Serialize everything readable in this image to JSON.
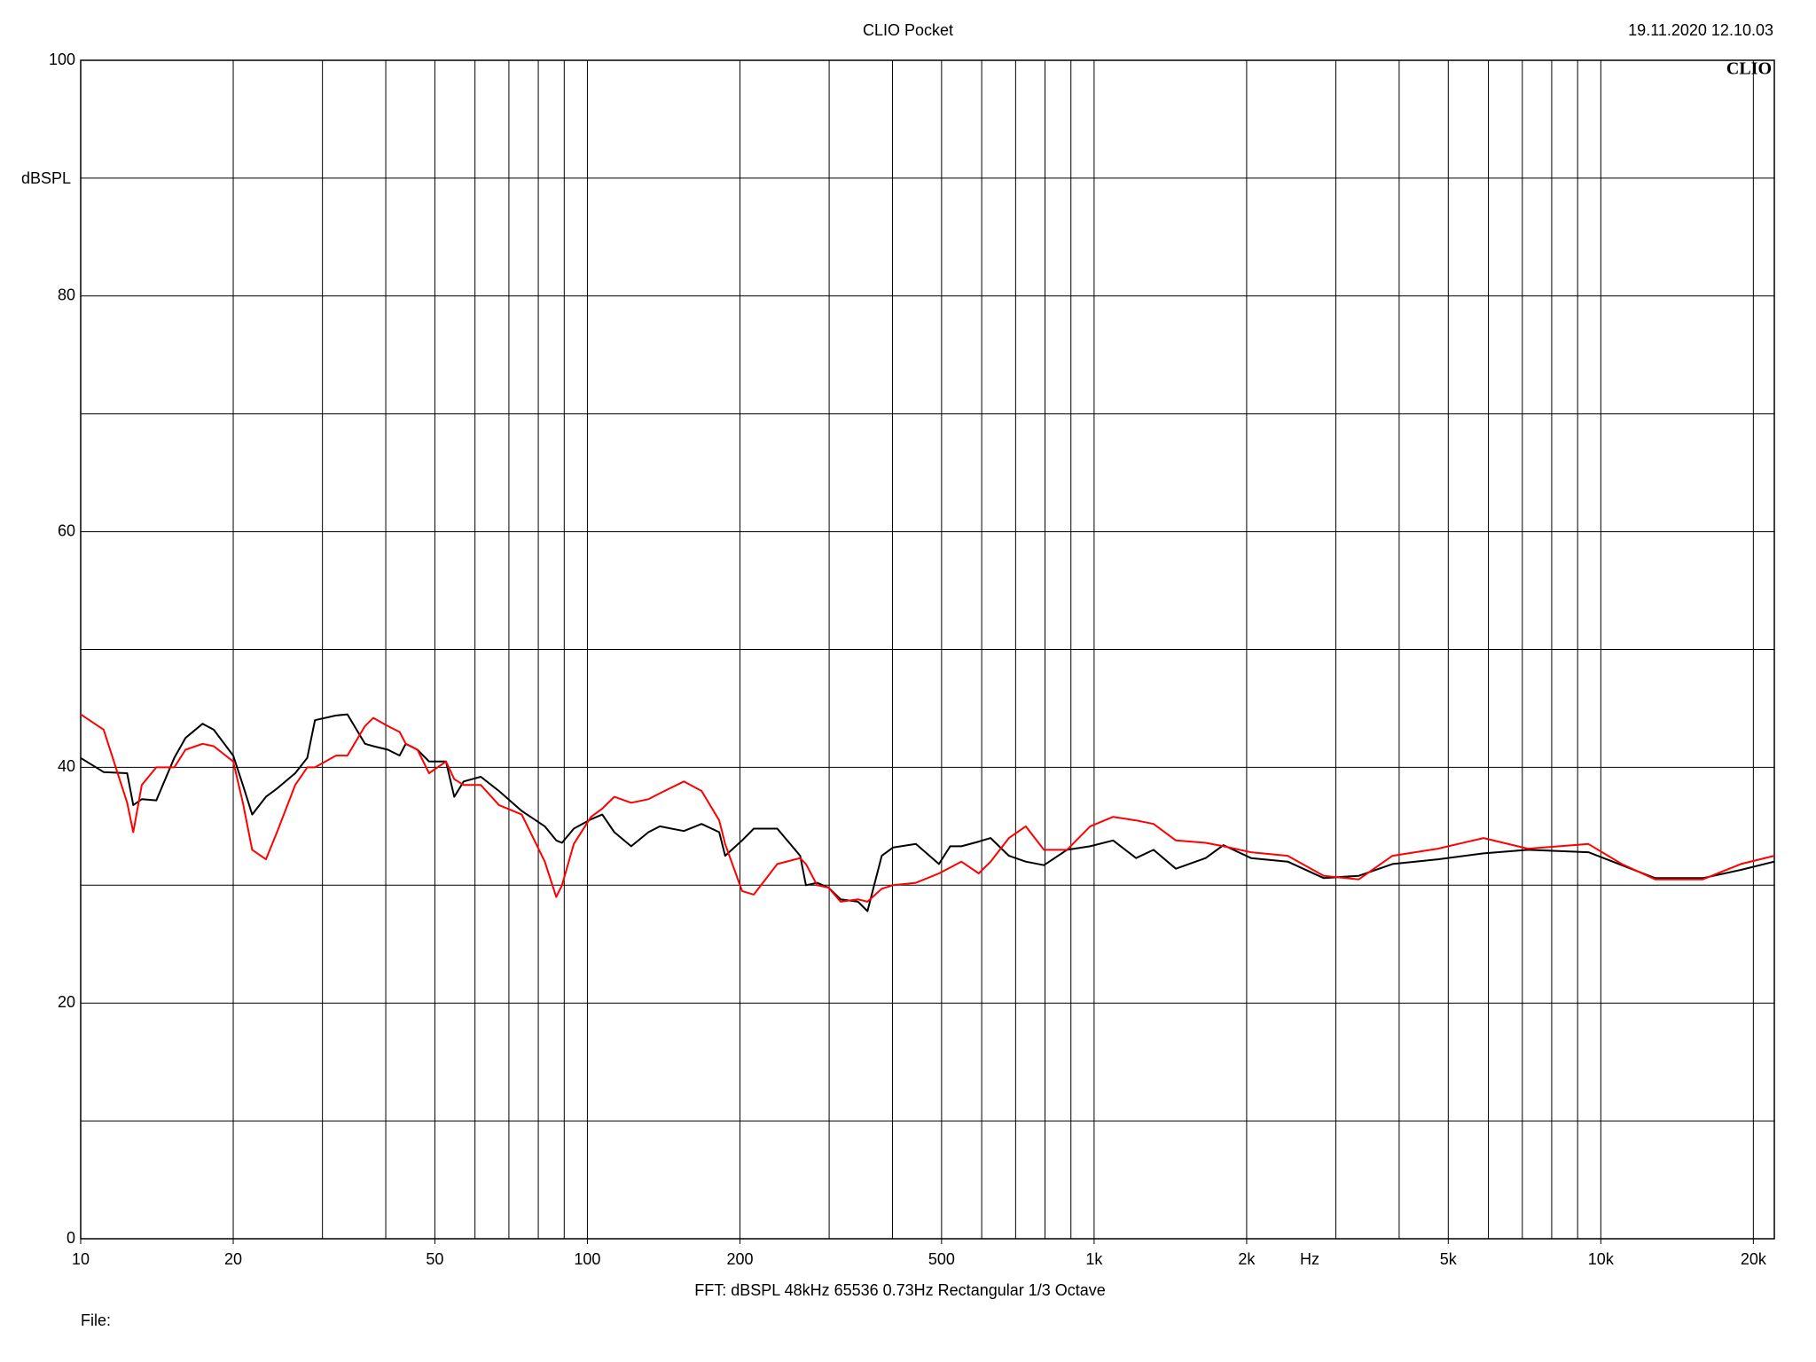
{
  "chart_data": {
    "type": "line",
    "title": "CLIO Pocket",
    "timestamp": "19.11.2020 12.10.03",
    "logo": "CLIO",
    "y_label": "dBSPL",
    "x_label": "Hz",
    "footer": "FFT:  dBSPL  48kHz  65536  0.73Hz  Rectangular  1/3 Octave",
    "file_label": "File:",
    "log_x": true,
    "grid": true,
    "xlim": [
      10,
      22000
    ],
    "ylim": [
      0,
      100
    ],
    "yticks": [
      0,
      20,
      40,
      60,
      80,
      100
    ],
    "ygrid_minor": [
      10,
      30,
      50,
      70,
      90
    ],
    "xticks": [
      10,
      20,
      50,
      100,
      200,
      500,
      {
        "value": 1000,
        "label": "1k"
      },
      {
        "value": 2000,
        "label": "2k"
      },
      {
        "value": 5000,
        "label": "5k"
      },
      {
        "value": 10000,
        "label": "10k"
      },
      {
        "value": 20000,
        "label": "20k"
      }
    ],
    "xgrid": [
      20,
      30,
      40,
      50,
      60,
      70,
      80,
      90,
      100,
      200,
      300,
      400,
      500,
      600,
      700,
      800,
      900,
      1000,
      2000,
      3000,
      4000,
      5000,
      6000,
      7000,
      8000,
      9000,
      10000,
      20000
    ],
    "x": [
      10,
      11.1,
      12.35,
      12.7,
      13.2,
      14.1,
      15.3,
      16.1,
      17.4,
      18.3,
      20,
      20.9,
      21.8,
      23.2,
      24.4,
      26.5,
      28.0,
      29.0,
      31.9,
      33.6,
      36.4,
      37.8,
      40.4,
      42.6,
      43.8,
      46.2,
      48.7,
      52.6,
      54.6,
      57,
      61.6,
      66.9,
      74.2,
      82.4,
      86.8,
      89.1,
      94,
      101.7,
      107,
      113,
      122,
      132,
      139,
      155,
      168,
      182,
      187,
      202,
      213,
      237,
      263,
      270,
      284,
      299,
      316,
      342,
      357,
      381,
      401,
      445,
      494,
      520,
      547,
      592,
      625,
      679,
      733,
      796,
      884,
      982,
      1090,
      1210,
      1310,
      1450,
      1660,
      1800,
      2040,
      2410,
      2840,
      3330,
      3880,
      4770,
      5870,
      7180,
      9450,
      11000,
      12800,
      15900,
      18900,
      22000
    ],
    "series": [
      {
        "name": "black",
        "color": "#000000",
        "values": [
          40.8,
          39.6,
          39.5,
          36.8,
          37.3,
          37.2,
          40.8,
          42.5,
          43.7,
          43.2,
          41,
          38.5,
          36,
          37.5,
          38.2,
          39.5,
          40.8,
          44,
          44.4,
          44.5,
          42,
          41.8,
          41.5,
          41,
          42,
          41.5,
          40.5,
          40.5,
          37.5,
          38.8,
          39.2,
          38,
          36.3,
          35,
          33.8,
          33.6,
          34.8,
          35.6,
          36,
          34.5,
          33.3,
          34.5,
          35,
          34.6,
          35.2,
          34.5,
          32.5,
          33.8,
          34.8,
          34.8,
          32.5,
          30,
          30.2,
          29.8,
          28.8,
          28.6,
          27.8,
          32.5,
          33.2,
          33.5,
          31.8,
          33.3,
          33.3,
          33.7,
          34,
          32.5,
          32,
          31.7,
          33,
          33.3,
          33.8,
          32.3,
          33,
          31.4,
          32.3,
          33.4,
          32.3,
          32,
          30.6,
          30.8,
          31.8,
          32.2,
          32.7,
          33,
          32.8,
          31.7,
          30.6,
          30.6,
          31.3,
          32
        ]
      },
      {
        "name": "red",
        "color": "#ff0000",
        "values": [
          44.5,
          43.2,
          37,
          34.5,
          38.5,
          40,
          40,
          41.5,
          42,
          41.8,
          40.5,
          37,
          33,
          32.2,
          34.5,
          38.5,
          40,
          40,
          41,
          41,
          43.5,
          44.2,
          43.5,
          43,
          42,
          41.5,
          39.5,
          40.5,
          39,
          38.5,
          38.5,
          36.8,
          36,
          32,
          29,
          30,
          33.5,
          35.8,
          36.5,
          37.5,
          37,
          37.3,
          37.8,
          38.8,
          38,
          35.5,
          33.5,
          29.5,
          29.2,
          31.8,
          32.3,
          31.8,
          30,
          29.8,
          28.6,
          28.8,
          28.6,
          29.7,
          30,
          30.2,
          31,
          31.5,
          32,
          31,
          32,
          34,
          35,
          33,
          33,
          35,
          35.8,
          35.5,
          35.2,
          33.8,
          33.6,
          33.3,
          32.8,
          32.5,
          30.8,
          30.5,
          32.5,
          33.1,
          34,
          33.1,
          33.5,
          31.8,
          30.5,
          30.5,
          31.8,
          32.5
        ]
      }
    ]
  }
}
